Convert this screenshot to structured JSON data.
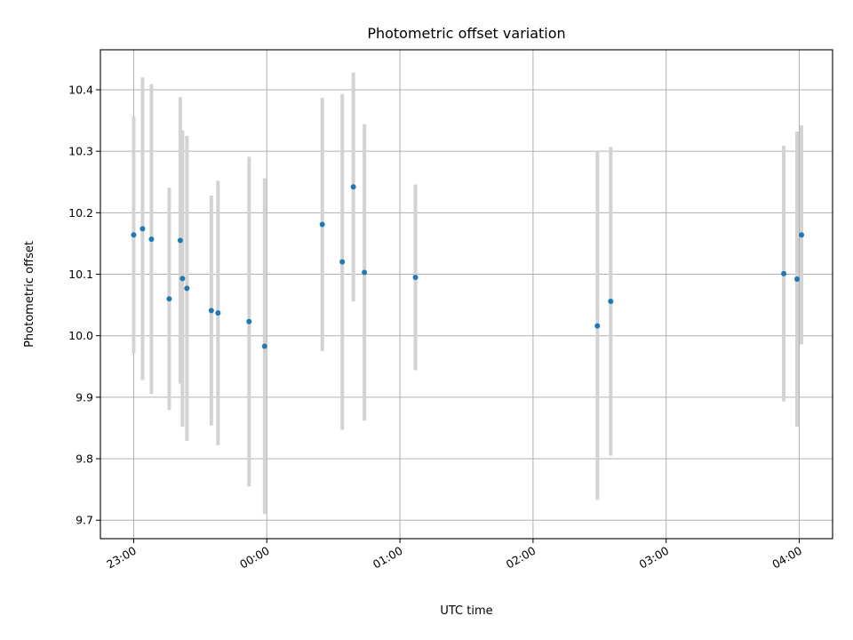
{
  "chart_data": {
    "type": "scatter",
    "title": "Photometric offset variation",
    "xlabel": "UTC time",
    "ylabel": "Photometric offset",
    "grid": true,
    "xlim": [
      "22:45",
      "04:15"
    ],
    "ylim": [
      9.67,
      10.465
    ],
    "x_ticks": [
      "23:00",
      "00:00",
      "01:00",
      "02:00",
      "03:00",
      "04:00"
    ],
    "y_ticks": [
      "9.7",
      "9.8",
      "9.9",
      "10.0",
      "10.1",
      "10.2",
      "10.3",
      "10.4"
    ],
    "colors": {
      "point": "#1f77b4",
      "errorbar": "#d3d3d3"
    },
    "points": [
      {
        "x": "23:00",
        "y": 10.164,
        "err": 0.193
      },
      {
        "x": "23:04",
        "y": 10.174,
        "err": 0.246
      },
      {
        "x": "23:08",
        "y": 10.157,
        "err": 0.252
      },
      {
        "x": "23:16",
        "y": 10.06,
        "err": 0.181
      },
      {
        "x": "23:21",
        "y": 10.155,
        "err": 0.233
      },
      {
        "x": "23:22",
        "y": 10.093,
        "err": 0.241
      },
      {
        "x": "23:24",
        "y": 10.077,
        "err": 0.248
      },
      {
        "x": "23:35",
        "y": 10.041,
        "err": 0.187
      },
      {
        "x": "23:38",
        "y": 10.037,
        "err": 0.215
      },
      {
        "x": "23:52",
        "y": 10.023,
        "err": 0.268
      },
      {
        "x": "23:59",
        "y": 9.983,
        "err": 0.273
      },
      {
        "x": "00:25",
        "y": 10.181,
        "err": 0.206
      },
      {
        "x": "00:34",
        "y": 10.12,
        "err": 0.273
      },
      {
        "x": "00:39",
        "y": 10.242,
        "err": 0.186
      },
      {
        "x": "00:44",
        "y": 10.103,
        "err": 0.241
      },
      {
        "x": "01:07",
        "y": 10.095,
        "err": 0.151
      },
      {
        "x": "02:29",
        "y": 10.016,
        "err": 0.283
      },
      {
        "x": "02:35",
        "y": 10.056,
        "err": 0.251
      },
      {
        "x": "03:53",
        "y": 10.101,
        "err": 0.208
      },
      {
        "x": "03:59",
        "y": 10.092,
        "err": 0.24
      },
      {
        "x": "04:01",
        "y": 10.164,
        "err": 0.178
      }
    ]
  }
}
